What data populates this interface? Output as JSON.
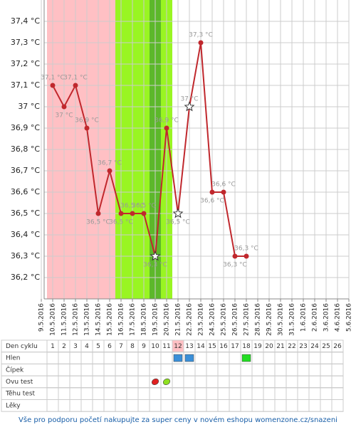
{
  "chart_data": {
    "type": "line",
    "categories": [
      "9.5.2016",
      "10.5.2016",
      "11.5.2016",
      "12.5.2016",
      "13.5.2016",
      "14.5.2016",
      "15.5.2016",
      "16.5.2016",
      "17.5.2016",
      "18.5.2016",
      "19.5.2016",
      "20.5.2016",
      "21.5.2016",
      "22.5.2016",
      "23.5.2016",
      "24.5.2016",
      "25.5.2016",
      "26.5.2016",
      "27.5.2016",
      "28.5.2016",
      "29.5.2016",
      "30.5.2016",
      "31.5.2016",
      "1.6.2016",
      "2.6.2016",
      "3.6.2016",
      "4.6.2016",
      "5.6.2016"
    ],
    "series": [
      {
        "color": "#c0282d",
        "values": [
          null,
          37.1,
          37.0,
          37.1,
          36.9,
          36.5,
          36.7,
          36.5,
          36.5,
          36.5,
          36.3,
          36.9,
          36.5,
          37.0,
          37.3,
          36.6,
          36.6,
          36.3,
          36.3,
          null,
          null,
          null,
          null,
          null,
          null,
          null,
          null,
          null
        ],
        "value_labels": [
          null,
          "37,1 °C",
          "37 °C",
          "37,1 °C",
          "36,9 °C",
          "36,5 °C",
          "36,7 °C",
          "36,5 °C",
          "36,5 °C",
          "36,5 °C",
          "36,3 °C",
          "36,9 °C",
          "36,5 °C",
          "37 °C",
          "37,3 °C",
          "36,6 °C",
          "36,6 °C",
          "36,3 °C",
          "36,3 °C",
          null,
          null,
          null,
          null,
          null,
          null,
          null,
          null,
          null
        ],
        "point_styles": [
          null,
          "circle",
          "circle",
          "circle",
          "circle",
          "circle",
          "circle",
          "circle",
          "circle",
          "circle",
          "star",
          "circle",
          "star",
          "star",
          "circle",
          "circle",
          "circle",
          "circle",
          "circle",
          null,
          null,
          null,
          null,
          null,
          null,
          null,
          null,
          null
        ]
      }
    ],
    "ylim": [
      36.1,
      37.5
    ],
    "yticks": [
      {
        "value": 36.2,
        "label": "36,2 °C"
      },
      {
        "value": 36.3,
        "label": "36,3 °C"
      },
      {
        "value": 36.4,
        "label": "36,4 °C"
      },
      {
        "value": 36.5,
        "label": "36,5 °C"
      },
      {
        "value": 36.6,
        "label": "36,6 °C"
      },
      {
        "value": 36.7,
        "label": "36,7 °C"
      },
      {
        "value": 36.8,
        "label": "36,8 °C"
      },
      {
        "value": 36.9,
        "label": "36,9 °C"
      },
      {
        "value": 37.0,
        "label": "37 °C"
      },
      {
        "value": 37.1,
        "label": "37,1 °C"
      },
      {
        "value": 37.2,
        "label": "37,2 °C"
      },
      {
        "value": 37.3,
        "label": "37,3 °C"
      },
      {
        "value": 37.4,
        "label": "37,4 °C"
      }
    ],
    "grid": true,
    "bands": [
      {
        "from": "10.5.2016",
        "to": "15.5.2016",
        "color": "#ffc0c4"
      },
      {
        "from": "16.5.2016",
        "to": "20.5.2016",
        "color": "#99f522"
      },
      {
        "from": "19.5.2016",
        "to": "19.5.2016",
        "color": "#5cb82a"
      }
    ]
  },
  "table": {
    "days": [
      1,
      2,
      3,
      4,
      5,
      6,
      7,
      8,
      9,
      10,
      11,
      12,
      13,
      14,
      15,
      16,
      17,
      18,
      19,
      20,
      21,
      22,
      23,
      24,
      25,
      26
    ],
    "today": 12,
    "rows": [
      {
        "label": "Den cyklu",
        "marks": []
      },
      {
        "label": "Hlen",
        "marks": [
          {
            "day": 12,
            "color": "#3a8fd8"
          },
          {
            "day": 13,
            "color": "#3a8fd8"
          },
          {
            "day": 18,
            "color": "#22dd22"
          }
        ]
      },
      {
        "label": "Čípek",
        "marks": []
      },
      {
        "label": "Ovu test",
        "marks": [
          {
            "day": 10,
            "color": "#e02020"
          },
          {
            "day": 11,
            "color": "#8fe020"
          }
        ]
      },
      {
        "label": "Těhu test",
        "marks": []
      },
      {
        "label": "Lěky",
        "marks": []
      }
    ]
  },
  "footer": "Vše pro podporu početí nakupujte za super ceny v novém eshopu womenzone.cz/snazeni"
}
